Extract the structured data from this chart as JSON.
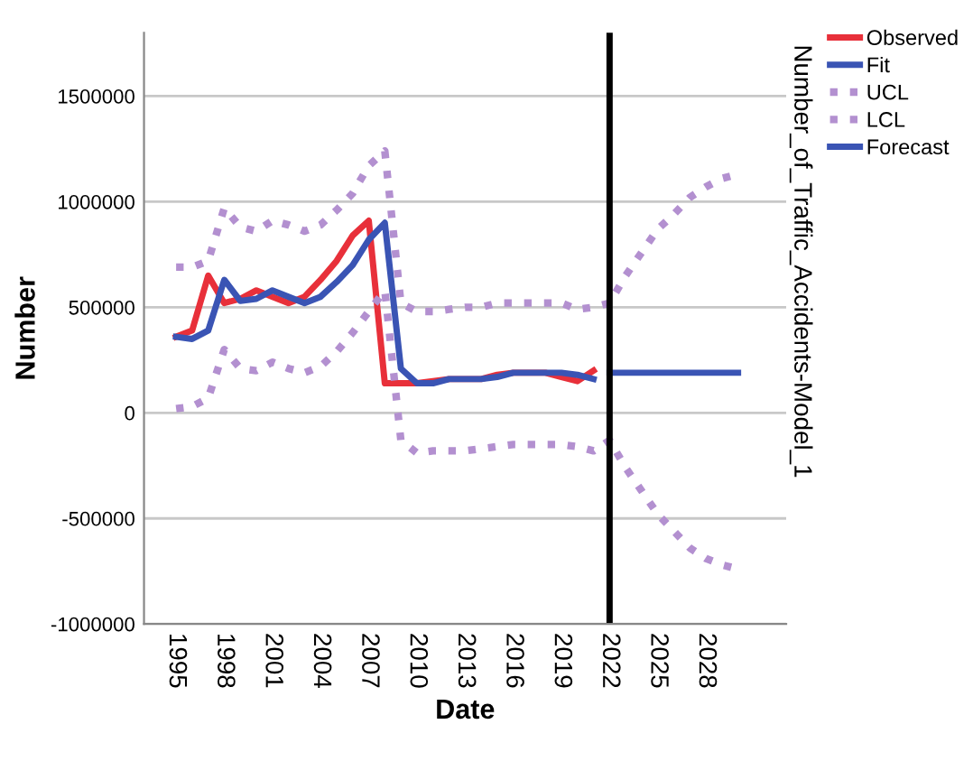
{
  "chart_data": {
    "type": "line",
    "xlabel": "Date",
    "ylabel": "Number",
    "y2label": "Number_of_Traffic_Accidents-Model_1",
    "xlim": [
      1993,
      2033
    ],
    "xticks": [
      1995,
      1998,
      2001,
      2004,
      2007,
      2010,
      2013,
      2016,
      2019,
      2022,
      2025,
      2028
    ],
    "ylim": [
      -1000000,
      1800000
    ],
    "yticks": [
      -1000000,
      -500000,
      0,
      500000,
      1000000,
      1500000
    ],
    "grid": "y",
    "legend": "right",
    "ref_lines": [
      {
        "axis": "x",
        "value": 2022,
        "color": "#000000"
      }
    ],
    "series": [
      {
        "name": "Observed",
        "color": "#e8303a",
        "line_style": "solid",
        "x": [
          1995,
          1996,
          1997,
          1998,
          1999,
          2000,
          2001,
          2002,
          2003,
          2004,
          2005,
          2006,
          2007,
          2008,
          2009,
          2010,
          2011,
          2012,
          2013,
          2014,
          2015,
          2016,
          2017,
          2018,
          2019,
          2020,
          2021
        ],
        "values": [
          360000,
          390000,
          650000,
          520000,
          540000,
          580000,
          550000,
          520000,
          550000,
          630000,
          720000,
          840000,
          910000,
          140000,
          140000,
          140000,
          150000,
          160000,
          160000,
          160000,
          180000,
          190000,
          190000,
          190000,
          170000,
          150000,
          200000
        ]
      },
      {
        "name": "Fit",
        "color": "#3a54b4",
        "line_style": "solid",
        "x": [
          1995,
          1996,
          1997,
          1998,
          1999,
          2000,
          2001,
          2002,
          2003,
          2004,
          2005,
          2006,
          2007,
          2008,
          2009,
          2010,
          2011,
          2012,
          2013,
          2014,
          2015,
          2016,
          2017,
          2018,
          2019,
          2020,
          2021
        ],
        "values": [
          360000,
          350000,
          390000,
          630000,
          530000,
          540000,
          580000,
          550000,
          520000,
          550000,
          620000,
          700000,
          820000,
          900000,
          210000,
          140000,
          140000,
          160000,
          160000,
          160000,
          170000,
          190000,
          190000,
          190000,
          190000,
          180000,
          160000
        ]
      },
      {
        "name": "UCL",
        "color": "#b390d0",
        "line_style": "dotted",
        "x": [
          1995,
          1996,
          1997,
          1998,
          1999,
          2000,
          2001,
          2002,
          2003,
          2004,
          2005,
          2006,
          2007,
          2008,
          2009,
          2010,
          2011,
          2012,
          2013,
          2014,
          2015,
          2016,
          2017,
          2018,
          2019,
          2020,
          2021,
          2022,
          2023,
          2024,
          2025,
          2026,
          2027,
          2028,
          2029,
          2030
        ],
        "values": [
          690000,
          690000,
          720000,
          970000,
          880000,
          860000,
          910000,
          890000,
          860000,
          890000,
          960000,
          1040000,
          1170000,
          1240000,
          520000,
          480000,
          480000,
          490000,
          500000,
          500000,
          520000,
          520000,
          520000,
          520000,
          520000,
          490000,
          500000,
          520000,
          650000,
          760000,
          870000,
          940000,
          1020000,
          1070000,
          1110000,
          1130000
        ]
      },
      {
        "name": "LCL",
        "color": "#b390d0",
        "line_style": "dotted",
        "x": [
          1995,
          1996,
          1997,
          1998,
          1999,
          2000,
          2001,
          2002,
          2003,
          2004,
          2005,
          2006,
          2007,
          2008,
          2009,
          2010,
          2011,
          2012,
          2013,
          2014,
          2015,
          2016,
          2017,
          2018,
          2019,
          2020,
          2021,
          2022,
          2023,
          2024,
          2025,
          2026,
          2027,
          2028,
          2029,
          2030
        ],
        "values": [
          20000,
          30000,
          70000,
          300000,
          210000,
          200000,
          240000,
          210000,
          190000,
          220000,
          290000,
          380000,
          480000,
          580000,
          -130000,
          -190000,
          -180000,
          -180000,
          -180000,
          -170000,
          -160000,
          -150000,
          -150000,
          -150000,
          -150000,
          -160000,
          -180000,
          -130000,
          -260000,
          -370000,
          -480000,
          -560000,
          -640000,
          -690000,
          -720000,
          -740000
        ]
      },
      {
        "name": "Forecast",
        "color": "#3a54b4",
        "line_style": "solid",
        "x": [
          2022,
          2023,
          2024,
          2025,
          2026,
          2027,
          2028,
          2029,
          2030
        ],
        "values": [
          190000,
          190000,
          190000,
          190000,
          190000,
          190000,
          190000,
          190000,
          190000
        ]
      }
    ]
  }
}
